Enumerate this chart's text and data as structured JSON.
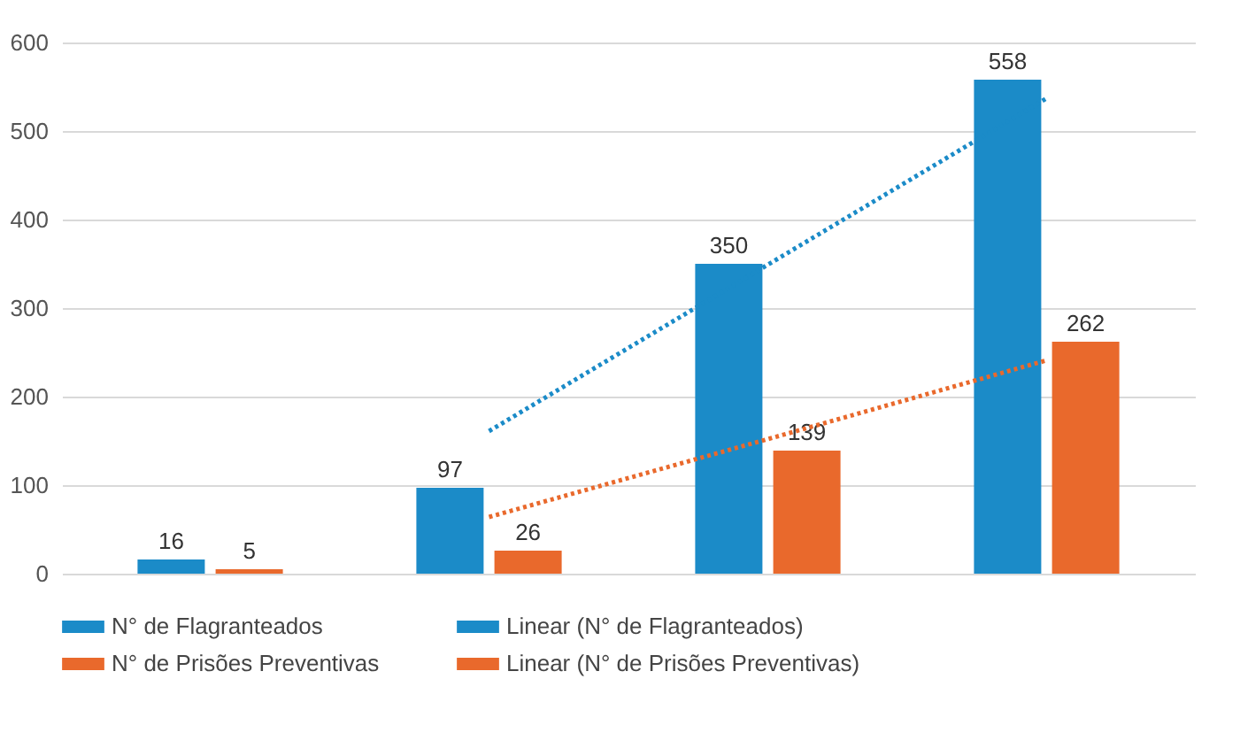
{
  "chart_data": {
    "type": "bar",
    "categories": [
      null,
      null,
      null,
      null
    ],
    "series": [
      {
        "name": "N° de Flagranteados",
        "color": "#1b8bc8",
        "values": [
          16,
          97,
          350,
          558
        ],
        "value_labels": [
          "16",
          "97",
          "350",
          "558"
        ]
      },
      {
        "name": "N° de Prisões Preventivas",
        "color": "#e9692c",
        "values": [
          5,
          26,
          139,
          262
        ],
        "value_labels": [
          "5",
          "26",
          "139",
          "262"
        ]
      },
      {
        "type": "line",
        "name": "Linear (N° de Flagranteados)",
        "color": "#1b8bc8",
        "line_style": "dotted",
        "values": [
          null,
          161,
          349,
          537
        ]
      },
      {
        "type": "line",
        "name": "Linear (N° de Prisões Preventivas)",
        "color": "#e9692c",
        "line_style": "dotted",
        "values": [
          null,
          64,
          152,
          241
        ]
      }
    ],
    "ylim": [
      0,
      600
    ],
    "yticks": [
      0,
      100,
      200,
      300,
      400,
      500,
      600
    ],
    "grid": "y",
    "legend": "bottom"
  }
}
